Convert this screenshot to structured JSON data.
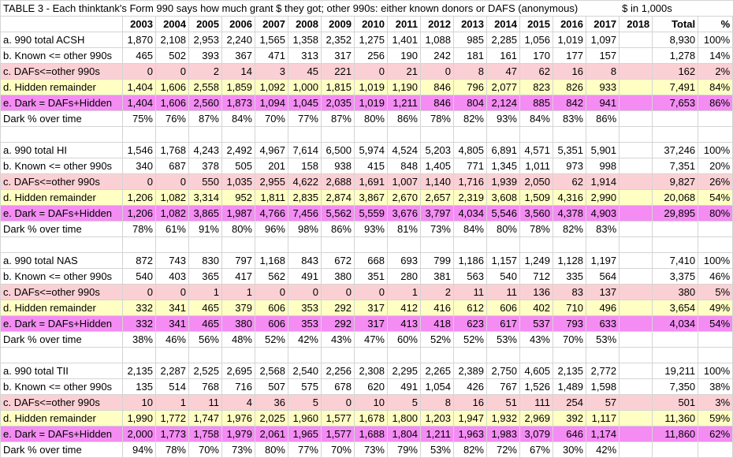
{
  "title": "TABLE 3 - Each thinktank's Form 990 says how much grant $ they got; other 990s: either known donors or DAFS (anonymous)",
  "units_note": "$ in 1,000s",
  "headers": [
    "",
    "2003",
    "2004",
    "2005",
    "2006",
    "2007",
    "2008",
    "2009",
    "2010",
    "2011",
    "2012",
    "2013",
    "2014",
    "2015",
    "2016",
    "2017",
    "2018",
    "Total",
    "%"
  ],
  "sections": [
    {
      "rows": [
        {
          "label": "a. 990 total ACSH",
          "style": "plain",
          "values": [
            "1,870",
            "2,108",
            "2,953",
            "2,240",
            "1,565",
            "1,358",
            "2,352",
            "1,275",
            "1,401",
            "1,088",
            "985",
            "2,285",
            "1,056",
            "1,019",
            "1,097",
            "",
            "8,930",
            "100%"
          ]
        },
        {
          "label": "b. Known <= other 990s",
          "style": "plain",
          "values": [
            "465",
            "502",
            "393",
            "367",
            "471",
            "313",
            "317",
            "256",
            "190",
            "242",
            "181",
            "161",
            "170",
            "177",
            "157",
            "",
            "1,278",
            "14%"
          ]
        },
        {
          "label": "c. DAFs<=other 990s",
          "style": "pink",
          "values": [
            "0",
            "0",
            "2",
            "14",
            "3",
            "45",
            "221",
            "0",
            "21",
            "0",
            "8",
            "47",
            "62",
            "16",
            "8",
            "",
            "162",
            "2%"
          ]
        },
        {
          "label": "d. Hidden remainder",
          "style": "yellow",
          "values": [
            "1,404",
            "1,606",
            "2,558",
            "1,859",
            "1,092",
            "1,000",
            "1,815",
            "1,019",
            "1,190",
            "846",
            "796",
            "2,077",
            "823",
            "826",
            "933",
            "",
            "7,491",
            "84%"
          ]
        },
        {
          "label": "e. Dark = DAFs+Hidden",
          "style": "magenta",
          "values": [
            "1,404",
            "1,606",
            "2,560",
            "1,873",
            "1,094",
            "1,045",
            "2,035",
            "1,019",
            "1,211",
            "846",
            "804",
            "2,124",
            "885",
            "842",
            "941",
            "",
            "7,653",
            "86%"
          ]
        },
        {
          "label": "Dark % over time",
          "style": "plain",
          "values": [
            "75%",
            "76%",
            "87%",
            "84%",
            "70%",
            "77%",
            "87%",
            "80%",
            "86%",
            "78%",
            "82%",
            "93%",
            "84%",
            "83%",
            "86%",
            "",
            "",
            ""
          ]
        }
      ]
    },
    {
      "rows": [
        {
          "label": "a. 990 total HI",
          "style": "plain",
          "values": [
            "1,546",
            "1,768",
            "4,243",
            "2,492",
            "4,967",
            "7,614",
            "6,500",
            "5,974",
            "4,524",
            "5,203",
            "4,805",
            "6,891",
            "4,571",
            "5,351",
            "5,901",
            "",
            "37,246",
            "100%"
          ]
        },
        {
          "label": "b. Known <= other 990s",
          "style": "plain",
          "values": [
            "340",
            "687",
            "378",
            "505",
            "201",
            "158",
            "938",
            "415",
            "848",
            "1,405",
            "771",
            "1,345",
            "1,011",
            "973",
            "998",
            "",
            "7,351",
            "20%"
          ]
        },
        {
          "label": "c. DAFs<=other 990s",
          "style": "pink",
          "values": [
            "0",
            "0",
            "550",
            "1,035",
            "2,955",
            "4,622",
            "2,688",
            "1,691",
            "1,007",
            "1,140",
            "1,716",
            "1,939",
            "2,050",
            "62",
            "1,914",
            "",
            "9,827",
            "26%"
          ]
        },
        {
          "label": "d. Hidden remainder",
          "style": "yellow",
          "values": [
            "1,206",
            "1,082",
            "3,314",
            "952",
            "1,811",
            "2,835",
            "2,874",
            "3,867",
            "2,670",
            "2,657",
            "2,319",
            "3,608",
            "1,509",
            "4,316",
            "2,990",
            "",
            "20,068",
            "54%"
          ]
        },
        {
          "label": "e. Dark = DAFs+Hidden",
          "style": "magenta",
          "values": [
            "1,206",
            "1,082",
            "3,865",
            "1,987",
            "4,766",
            "7,456",
            "5,562",
            "5,559",
            "3,676",
            "3,797",
            "4,034",
            "5,546",
            "3,560",
            "4,378",
            "4,903",
            "",
            "29,895",
            "80%"
          ]
        },
        {
          "label": "Dark % over time",
          "style": "plain",
          "values": [
            "78%",
            "61%",
            "91%",
            "80%",
            "96%",
            "98%",
            "86%",
            "93%",
            "81%",
            "73%",
            "84%",
            "80%",
            "78%",
            "82%",
            "83%",
            "",
            "",
            ""
          ]
        }
      ]
    },
    {
      "rows": [
        {
          "label": "a. 990 total NAS",
          "style": "plain",
          "values": [
            "872",
            "743",
            "830",
            "797",
            "1,168",
            "843",
            "672",
            "668",
            "693",
            "799",
            "1,186",
            "1,157",
            "1,249",
            "1,128",
            "1,197",
            "",
            "7,410",
            "100%"
          ]
        },
        {
          "label": "b. Known <= other 990s",
          "style": "plain",
          "values": [
            "540",
            "403",
            "365",
            "417",
            "562",
            "491",
            "380",
            "351",
            "280",
            "381",
            "563",
            "540",
            "712",
            "335",
            "564",
            "",
            "3,375",
            "46%"
          ]
        },
        {
          "label": "c. DAFs<=other 990s",
          "style": "pink",
          "values": [
            "0",
            "0",
            "1",
            "1",
            "0",
            "0",
            "0",
            "0",
            "1",
            "2",
            "11",
            "11",
            "136",
            "83",
            "137",
            "",
            "380",
            "5%"
          ]
        },
        {
          "label": "d. Hidden remainder",
          "style": "yellow",
          "values": [
            "332",
            "341",
            "465",
            "379",
            "606",
            "353",
            "292",
            "317",
            "412",
            "416",
            "612",
            "606",
            "402",
            "710",
            "496",
            "",
            "3,654",
            "49%"
          ]
        },
        {
          "label": "e. Dark = DAFs+Hidden",
          "style": "magenta",
          "values": [
            "332",
            "341",
            "465",
            "380",
            "606",
            "353",
            "292",
            "317",
            "413",
            "418",
            "623",
            "617",
            "537",
            "793",
            "633",
            "",
            "4,034",
            "54%"
          ]
        },
        {
          "label": "Dark % over time",
          "style": "plain",
          "values": [
            "38%",
            "46%",
            "56%",
            "48%",
            "52%",
            "42%",
            "43%",
            "47%",
            "60%",
            "52%",
            "52%",
            "53%",
            "43%",
            "70%",
            "53%",
            "",
            "",
            ""
          ]
        }
      ]
    },
    {
      "rows": [
        {
          "label": "a. 990 total TII",
          "style": "plain",
          "values": [
            "2,135",
            "2,287",
            "2,525",
            "2,695",
            "2,568",
            "2,540",
            "2,256",
            "2,308",
            "2,295",
            "2,265",
            "2,389",
            "2,750",
            "4,605",
            "2,135",
            "2,772",
            "",
            "19,211",
            "100%"
          ]
        },
        {
          "label": "b. Known <= other 990s",
          "style": "plain",
          "values": [
            "135",
            "514",
            "768",
            "716",
            "507",
            "575",
            "678",
            "620",
            "491",
            "1,054",
            "426",
            "767",
            "1,526",
            "1,489",
            "1,598",
            "",
            "7,350",
            "38%"
          ]
        },
        {
          "label": "c. DAFs<=other 990s",
          "style": "pink",
          "values": [
            "10",
            "1",
            "11",
            "4",
            "36",
            "5",
            "0",
            "10",
            "5",
            "8",
            "16",
            "51",
            "111",
            "254",
            "57",
            "",
            "501",
            "3%"
          ]
        },
        {
          "label": "d. Hidden remainder",
          "style": "yellow",
          "values": [
            "1,990",
            "1,772",
            "1,747",
            "1,976",
            "2,025",
            "1,960",
            "1,577",
            "1,678",
            "1,800",
            "1,203",
            "1,947",
            "1,932",
            "2,969",
            "392",
            "1,117",
            "",
            "11,360",
            "59%"
          ]
        },
        {
          "label": "e. Dark = DAFs+Hidden",
          "style": "magenta",
          "values": [
            "2,000",
            "1,773",
            "1,758",
            "1,979",
            "2,061",
            "1,965",
            "1,577",
            "1,688",
            "1,804",
            "1,211",
            "1,963",
            "1,983",
            "3,079",
            "646",
            "1,174",
            "",
            "11,860",
            "62%"
          ]
        },
        {
          "label": "Dark % over time",
          "style": "plain",
          "values": [
            "94%",
            "78%",
            "70%",
            "73%",
            "80%",
            "77%",
            "70%",
            "73%",
            "79%",
            "53%",
            "82%",
            "72%",
            "67%",
            "30%",
            "42%",
            "",
            "",
            ""
          ]
        }
      ]
    }
  ]
}
